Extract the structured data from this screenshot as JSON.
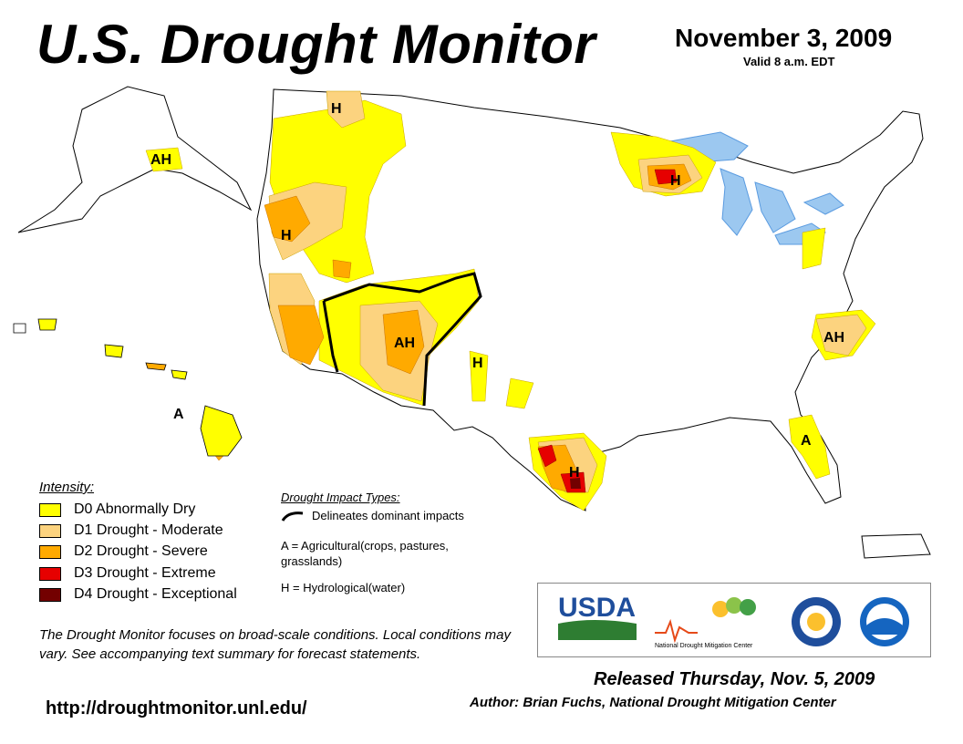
{
  "header": {
    "title": "U.S. Drought Monitor",
    "date": "November 3, 2009",
    "valid": "Valid 8 a.m. EDT"
  },
  "legend": {
    "title": "Intensity:",
    "items": [
      {
        "label": "D0 Abnormally Dry",
        "color": "#FFFF00"
      },
      {
        "label": "D1 Drought - Moderate",
        "color": "#FCD37F"
      },
      {
        "label": "D2 Drought - Severe",
        "color": "#FFAA00"
      },
      {
        "label": "D3 Drought - Extreme",
        "color": "#E60000"
      },
      {
        "label": "D4 Drought - Exceptional",
        "color": "#730000"
      }
    ]
  },
  "impacts": {
    "title": "Drought Impact Types:",
    "delineates": "Delineates dominant impacts",
    "a": "A = Agricultural(crops, pastures, grasslands)",
    "h": "H = Hydrological(water)"
  },
  "map_labels": {
    "h": "H",
    "ah": "AH",
    "a": "A"
  },
  "note": "The Drought Monitor focuses on broad-scale conditions. Local conditions may vary. See accompanying text summary for forecast statements.",
  "url": "http://droughtmonitor.unl.edu/",
  "footer": {
    "released": "Released Thursday, Nov. 5, 2009",
    "author": "Author: Brian Fuchs, National Drought Mitigation Center"
  },
  "logos": {
    "usda": "USDA",
    "ndmc": "National Drought Mitigation Center"
  },
  "colors": {
    "water": "#9CC8F0",
    "outline": "#000000",
    "river": "#5A9BE0"
  }
}
